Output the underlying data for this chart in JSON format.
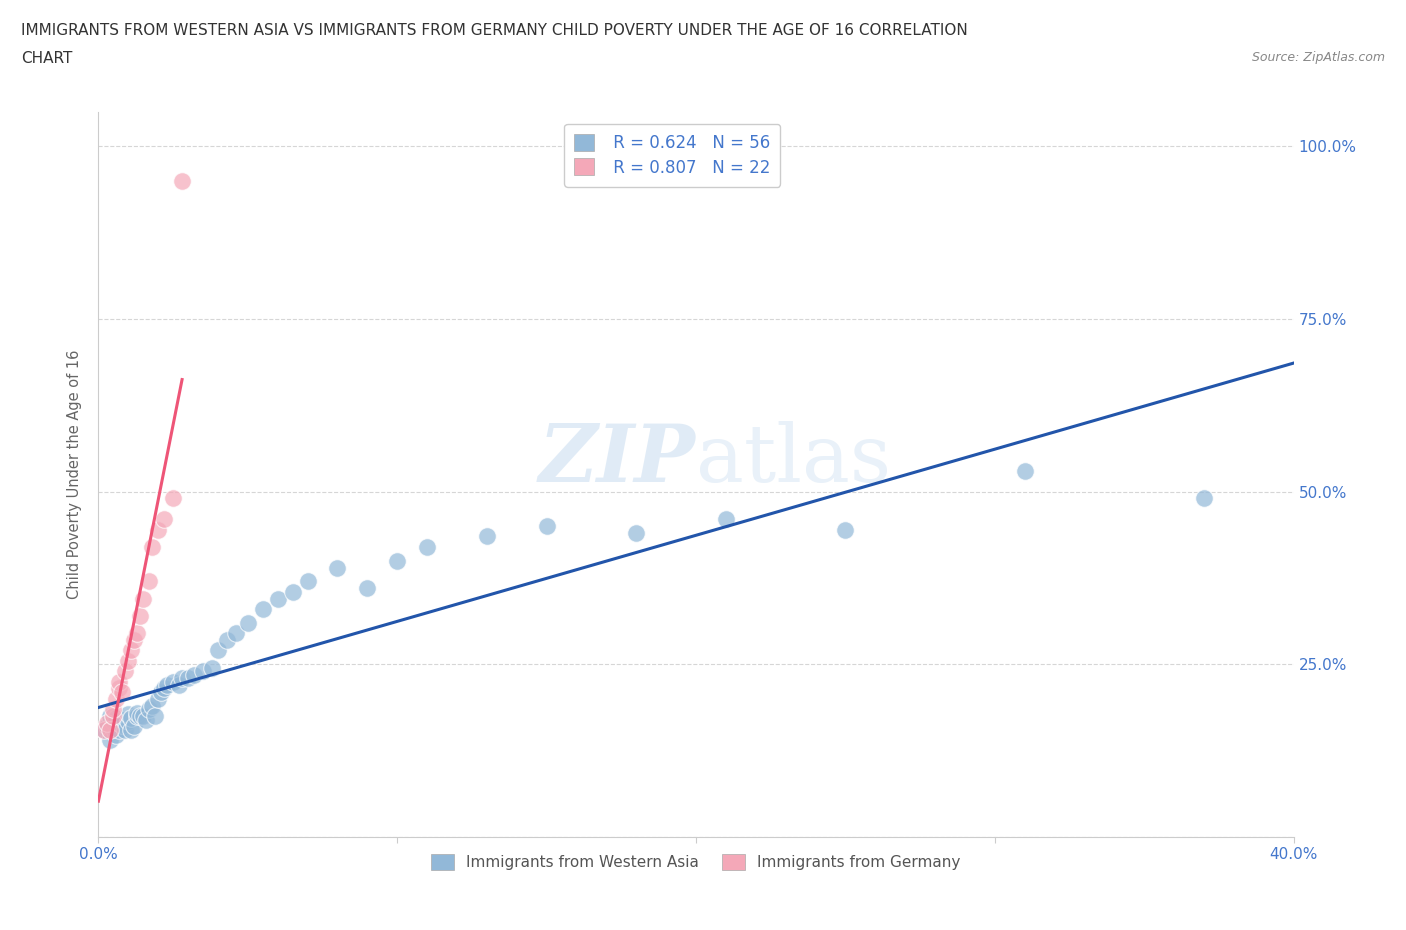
{
  "title_line1": "IMMIGRANTS FROM WESTERN ASIA VS IMMIGRANTS FROM GERMANY CHILD POVERTY UNDER THE AGE OF 16 CORRELATION",
  "title_line2": "CHART",
  "source": "Source: ZipAtlas.com",
  "ylabel": "Child Poverty Under the Age of 16",
  "xlim": [
    0.0,
    0.4
  ],
  "ylim": [
    0.0,
    1.05
  ],
  "legend_label1": "Immigrants from Western Asia",
  "legend_label2": "Immigrants from Germany",
  "r1": 0.624,
  "n1": 56,
  "r2": 0.807,
  "n2": 22,
  "color1": "#92B8D8",
  "color2": "#F4A8B8",
  "line_color1": "#2255AA",
  "line_color2": "#EE5577",
  "background_color": "#FFFFFF",
  "title_color": "#333333",
  "title_fontsize": 11,
  "axis_label_color": "#4477CC",
  "western_asia_x": [
    0.002,
    0.003,
    0.004,
    0.004,
    0.005,
    0.005,
    0.006,
    0.006,
    0.007,
    0.007,
    0.008,
    0.008,
    0.009,
    0.01,
    0.01,
    0.011,
    0.011,
    0.012,
    0.013,
    0.013,
    0.014,
    0.015,
    0.016,
    0.017,
    0.018,
    0.019,
    0.02,
    0.021,
    0.022,
    0.023,
    0.025,
    0.027,
    0.028,
    0.03,
    0.032,
    0.035,
    0.038,
    0.04,
    0.043,
    0.046,
    0.05,
    0.055,
    0.06,
    0.065,
    0.07,
    0.08,
    0.09,
    0.1,
    0.11,
    0.13,
    0.15,
    0.18,
    0.21,
    0.25,
    0.31,
    0.37
  ],
  "western_asia_y": [
    0.155,
    0.16,
    0.14,
    0.175,
    0.158,
    0.168,
    0.148,
    0.172,
    0.155,
    0.165,
    0.17,
    0.162,
    0.155,
    0.168,
    0.178,
    0.155,
    0.172,
    0.16,
    0.175,
    0.18,
    0.175,
    0.175,
    0.17,
    0.185,
    0.19,
    0.175,
    0.2,
    0.21,
    0.215,
    0.22,
    0.225,
    0.22,
    0.23,
    0.23,
    0.235,
    0.24,
    0.245,
    0.27,
    0.285,
    0.295,
    0.31,
    0.33,
    0.345,
    0.355,
    0.37,
    0.39,
    0.36,
    0.4,
    0.42,
    0.435,
    0.45,
    0.44,
    0.46,
    0.445,
    0.53,
    0.49
  ],
  "germany_x": [
    0.002,
    0.003,
    0.004,
    0.005,
    0.005,
    0.006,
    0.007,
    0.007,
    0.008,
    0.009,
    0.01,
    0.011,
    0.012,
    0.013,
    0.014,
    0.015,
    0.017,
    0.018,
    0.02,
    0.022,
    0.025,
    0.028
  ],
  "germany_y": [
    0.155,
    0.165,
    0.155,
    0.175,
    0.185,
    0.2,
    0.215,
    0.225,
    0.21,
    0.24,
    0.255,
    0.27,
    0.285,
    0.295,
    0.32,
    0.345,
    0.37,
    0.42,
    0.445,
    0.46,
    0.49,
    0.95
  ]
}
